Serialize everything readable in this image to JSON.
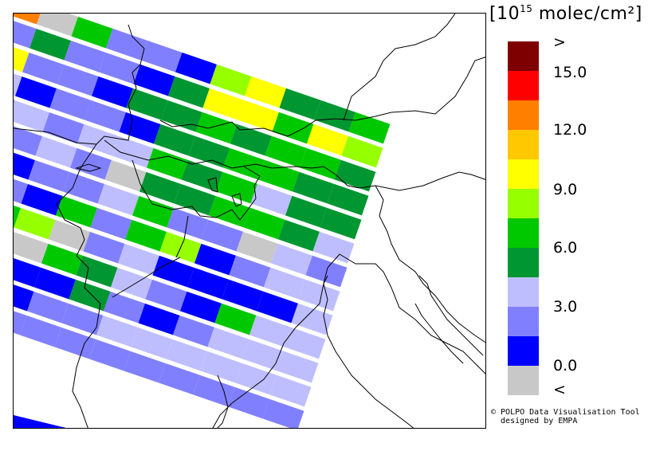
{
  "legend": {
    "unit_prefix": "[10",
    "unit_exp": "15",
    "unit_suffix": " molec/cm²]",
    "colors": [
      "#7f0000",
      "#ff0000",
      "#ff7f00",
      "#ffc800",
      "#ffff00",
      "#96ff00",
      "#00c800",
      "#009632",
      "#bebeff",
      "#8080ff",
      "#0000ff",
      "#c8c8c8"
    ],
    "labels": [
      ">",
      "15.0",
      "12.0",
      "9.0",
      "6.0",
      "3.0",
      "0.0",
      "<"
    ]
  },
  "credit": {
    "line1": "© POLPO Data Visualisation Tool",
    "line2": "  designed by EMPA"
  }
}
